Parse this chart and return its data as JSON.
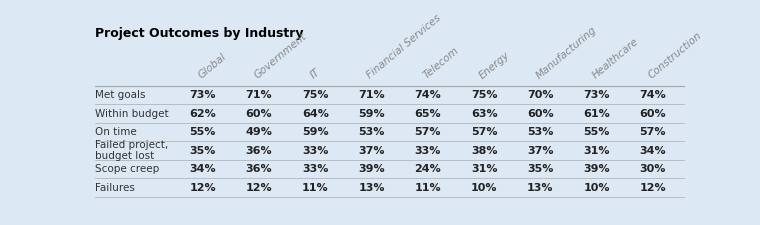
{
  "title": "Project Outcomes by Industry",
  "columns": [
    "Global",
    "Government",
    "IT",
    "Financial Services",
    "Telecom",
    "Energy",
    "Manufacturing",
    "Healthcare",
    "Construction"
  ],
  "rows": [
    {
      "label": "Met goals",
      "values": [
        "73%",
        "71%",
        "75%",
        "71%",
        "74%",
        "75%",
        "70%",
        "73%",
        "74%"
      ]
    },
    {
      "label": "Within budget",
      "values": [
        "62%",
        "60%",
        "64%",
        "59%",
        "65%",
        "63%",
        "60%",
        "61%",
        "60%"
      ]
    },
    {
      "label": "On time",
      "values": [
        "55%",
        "49%",
        "59%",
        "53%",
        "57%",
        "57%",
        "53%",
        "55%",
        "57%"
      ]
    },
    {
      "label": "Failed project,\nbudget lost",
      "values": [
        "35%",
        "36%",
        "33%",
        "37%",
        "33%",
        "38%",
        "37%",
        "31%",
        "34%"
      ]
    },
    {
      "label": "Scope creep",
      "values": [
        "34%",
        "36%",
        "33%",
        "39%",
        "24%",
        "31%",
        "35%",
        "39%",
        "30%"
      ]
    },
    {
      "label": "Failures",
      "values": [
        "12%",
        "12%",
        "11%",
        "13%",
        "11%",
        "10%",
        "13%",
        "10%",
        "12%"
      ]
    }
  ],
  "background_color": "#dce9f5",
  "title_fontsize": 9,
  "header_fontsize": 7.5,
  "cell_fontsize": 8,
  "row_label_fontsize": 7.5,
  "header_color": "#888888",
  "cell_color": "#222222",
  "row_label_color": "#333333",
  "line_color": "#aaaaaa",
  "title_color": "#000000"
}
